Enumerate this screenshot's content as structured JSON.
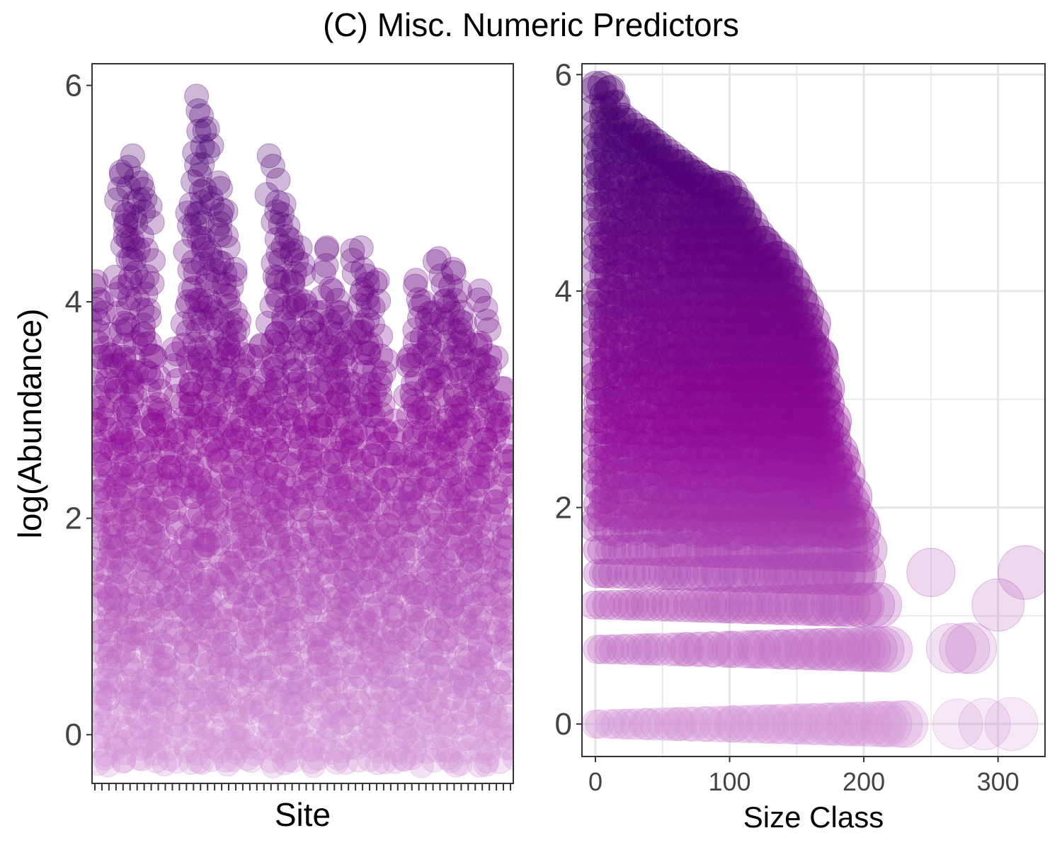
{
  "title": "(C) Misc. Numeric Predictors",
  "colors": {
    "low": "#d494d8",
    "mid": "#8e0a96",
    "high": "#4b0072",
    "grid": "#e6e6e6",
    "frame": "#333333"
  },
  "chart_data": [
    {
      "type": "scatter",
      "panel": "left",
      "xlabel": "Site",
      "ylabel": "log(Abundance)",
      "ylim": [
        -0.45,
        6.2
      ],
      "yticks": [
        0,
        2,
        4,
        6
      ],
      "x_tick_count": 60,
      "grid": false,
      "site_max_log_abundance": [
        4.15,
        4.0,
        3.5,
        5.2,
        5.35,
        5.1,
        4.95,
        3.5,
        3.0,
        2.8,
        3.6,
        4.9,
        5.9,
        5.6,
        5.1,
        4.85,
        4.3,
        3.9,
        3.5,
        3.2,
        3.6,
        5.35,
        4.9,
        4.7,
        4.5,
        4.0,
        3.9,
        4.5,
        4.1,
        3.9,
        3.8,
        4.5,
        4.3,
        4.2,
        3.5,
        2.9,
        2.6,
        3.5,
        4.2,
        4.0,
        3.9,
        4.4,
        4.3,
        4.1,
        3.8,
        3.6,
        4.1,
        3.5,
        3.2,
        3.0
      ]
    },
    {
      "type": "scatter",
      "panel": "right",
      "xlabel": "Size Class",
      "ylabel": "",
      "xlim": [
        -10,
        335
      ],
      "ylim": [
        -0.3,
        6.1
      ],
      "xticks": [
        0,
        100,
        200,
        300
      ],
      "yticks": [
        0,
        2,
        4,
        6
      ],
      "grid": true,
      "upper_envelope": [
        [
          5,
          5.9
        ],
        [
          10,
          5.85
        ],
        [
          20,
          5.6
        ],
        [
          40,
          5.4
        ],
        [
          60,
          5.2
        ],
        [
          80,
          5.0
        ],
        [
          100,
          4.9
        ],
        [
          120,
          4.5
        ],
        [
          140,
          4.2
        ],
        [
          160,
          3.7
        ],
        [
          170,
          3.1
        ],
        [
          180,
          2.5
        ],
        [
          190,
          2.1
        ],
        [
          200,
          1.6
        ],
        [
          210,
          1.1
        ],
        [
          220,
          0.7
        ],
        [
          230,
          0.0
        ]
      ],
      "outliers": [
        [
          250,
          1.4
        ],
        [
          265,
          0.7
        ],
        [
          275,
          0.7
        ],
        [
          280,
          0.7
        ],
        [
          300,
          1.1
        ],
        [
          320,
          1.4
        ],
        [
          270,
          0.0
        ],
        [
          290,
          0.0
        ],
        [
          310,
          0.0
        ]
      ]
    }
  ]
}
